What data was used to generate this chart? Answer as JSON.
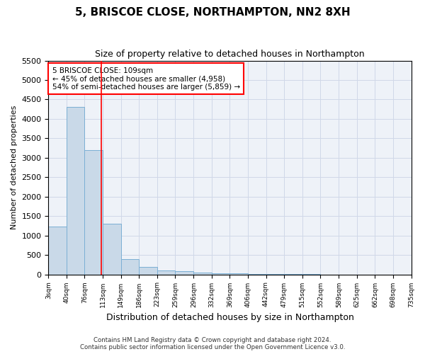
{
  "title": "5, BRISCOE CLOSE, NORTHAMPTON, NN2 8XH",
  "subtitle": "Size of property relative to detached houses in Northampton",
  "xlabel": "Distribution of detached houses by size in Northampton",
  "ylabel": "Number of detached properties",
  "footer_line1": "Contains HM Land Registry data © Crown copyright and database right 2024.",
  "footer_line2": "Contains public sector information licensed under the Open Government Licence v3.0.",
  "annotation_title": "5 BRISCOE CLOSE: 109sqm",
  "annotation_line2": "← 45% of detached houses are smaller (4,958)",
  "annotation_line3": "54% of semi-detached houses are larger (5,859) →",
  "bar_color": "#c9d9e8",
  "bar_edge_color": "#7bafd4",
  "grid_color": "#d0d8e8",
  "redline_x": 109,
  "bin_edges": [
    3,
    40,
    76,
    113,
    149,
    186,
    223,
    259,
    296,
    332,
    369,
    406,
    442,
    479,
    515,
    552,
    589,
    625,
    662,
    698,
    735
  ],
  "bin_labels": [
    "3sqm",
    "40sqm",
    "76sqm",
    "113sqm",
    "149sqm",
    "186sqm",
    "223sqm",
    "259sqm",
    "296sqm",
    "332sqm",
    "369sqm",
    "406sqm",
    "442sqm",
    "479sqm",
    "515sqm",
    "552sqm",
    "589sqm",
    "625sqm",
    "662sqm",
    "698sqm",
    "735sqm"
  ],
  "counts": [
    1230,
    4300,
    3200,
    1300,
    400,
    200,
    100,
    75,
    50,
    30,
    20,
    10,
    5,
    3,
    2,
    1,
    1,
    0,
    0,
    0
  ],
  "ylim": [
    0,
    5500
  ],
  "yticks": [
    0,
    500,
    1000,
    1500,
    2000,
    2500,
    3000,
    3500,
    4000,
    4500,
    5000,
    5500
  ]
}
